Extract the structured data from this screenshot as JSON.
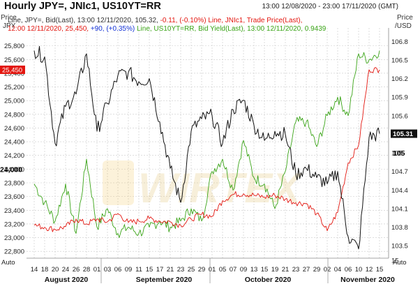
{
  "header": {
    "title": "Hourly JPY=, JNIc1, US10YT=RR",
    "date_range": "13:00 12/08/2020 - 23:00 17/11/2020 (GMT)"
  },
  "legend": {
    "line1": "Line, JPY=, Bid(Last), 13:00 12/11/2020, 105.32, ",
    "line1_change": "-0.11, (-0.10%)",
    "line1_red": "Line, JNIc1, Trade Price(Last),",
    "line2_red": "12:00 12/11/2020, 25,450, ",
    "line2_change": "+90, (+0.35%)",
    "line2_green": "Line, US10YT=RR, Bid Yield(Last), 13:00 12/11/2020, 0.9439"
  },
  "axes": {
    "left_header": [
      "Price",
      "JPY"
    ],
    "right_header": [
      "Price",
      "/USD"
    ],
    "auto_label": "Auto",
    "left_ticks": [
      "25,800",
      "25,600",
      "25,400",
      "25,200",
      "25,000",
      "24,800",
      "24,600",
      "24,400",
      "24,200",
      "24,000",
      "23,800",
      "23,600",
      "23,400",
      "23,200",
      "23,000",
      "22,800"
    ],
    "right_ticks": [
      "106.8",
      "106.5",
      "106.2",
      "105.9",
      "105.6",
      "105.3",
      "105",
      "104.7",
      "104.4",
      "104.1",
      "103.8",
      "103.5",
      "15"
    ],
    "x_ticks": [
      "14",
      "18",
      "20",
      "24",
      "26",
      "28",
      "01",
      "03",
      "06",
      "09",
      "11",
      "15",
      "17",
      "21",
      "23",
      "25",
      "29",
      "01",
      "05",
      "07",
      "09",
      "13",
      "15",
      "19",
      "21",
      "23",
      "27",
      "29",
      "02",
      "04",
      "06",
      "10",
      "12",
      "15"
    ],
    "months": [
      "August 2020",
      "September 2020",
      "October 2020",
      "November 2020"
    ]
  },
  "markers": {
    "left_value": "25,450",
    "right_value": "105.31",
    "left_bold": "24,000",
    "right_bold": "105"
  },
  "watermark": "WIRTEX",
  "colors": {
    "jpy": "#111111",
    "nikkei": "#e3160f",
    "yield": "#3aa417",
    "grid": "#c9c9c9",
    "change_neg": "#e3160f",
    "change_pos": "#1533d6"
  },
  "chart_data": {
    "type": "line",
    "x": [
      "08-12",
      "08-14",
      "08-18",
      "08-20",
      "08-24",
      "08-26",
      "08-28",
      "09-01",
      "09-03",
      "09-06",
      "09-09",
      "09-11",
      "09-15",
      "09-17",
      "09-21",
      "09-23",
      "09-25",
      "09-29",
      "10-01",
      "10-05",
      "10-07",
      "10-09",
      "10-13",
      "10-15",
      "10-19",
      "10-21",
      "10-23",
      "10-27",
      "10-29",
      "11-02",
      "11-04",
      "11-06",
      "11-10",
      "11-12"
    ],
    "series": [
      {
        "name": "JPY=",
        "axis": "right",
        "values": [
          106.65,
          106.55,
          105.15,
          105.75,
          105.95,
          106.6,
          105.35,
          105.8,
          106.25,
          106.3,
          106.15,
          106.2,
          105.5,
          104.75,
          104.2,
          105.35,
          105.55,
          105.6,
          105.15,
          105.7,
          105.85,
          105.45,
          105.2,
          105.35,
          105.3,
          104.65,
          104.75,
          104.6,
          104.5,
          104.7,
          103.65,
          103.45,
          105.25,
          105.31
        ]
      },
      {
        "name": "JNIc1",
        "axis": "left",
        "values": [
          23180,
          23150,
          23120,
          23160,
          23270,
          23200,
          23270,
          23230,
          23350,
          23220,
          23240,
          23280,
          23240,
          23230,
          23180,
          23270,
          23340,
          23310,
          23540,
          23630,
          23640,
          23620,
          23590,
          23620,
          23560,
          23510,
          23500,
          23350,
          23100,
          23370,
          24090,
          24350,
          25450,
          25450
        ]
      },
      {
        "name": "US10YT=RR",
        "axis": "right",
        "values": [
          104.5,
          104.2,
          103.9,
          104.5,
          103.7,
          104.9,
          103.8,
          104.1,
          103.7,
          103.8,
          103.7,
          103.8,
          103.9,
          103.8,
          103.9,
          104.1,
          103.9,
          104.7,
          104.9,
          104.4,
          105.2,
          104.6,
          104.5,
          104.1,
          104.7,
          105.5,
          105.5,
          105.1,
          105.6,
          105.9,
          105.6,
          106.6,
          106.5,
          106.65
        ]
      }
    ],
    "ylim_left": [
      22700,
      26000
    ],
    "ylim_right": [
      103.3,
      106.95
    ],
    "grid": true
  }
}
